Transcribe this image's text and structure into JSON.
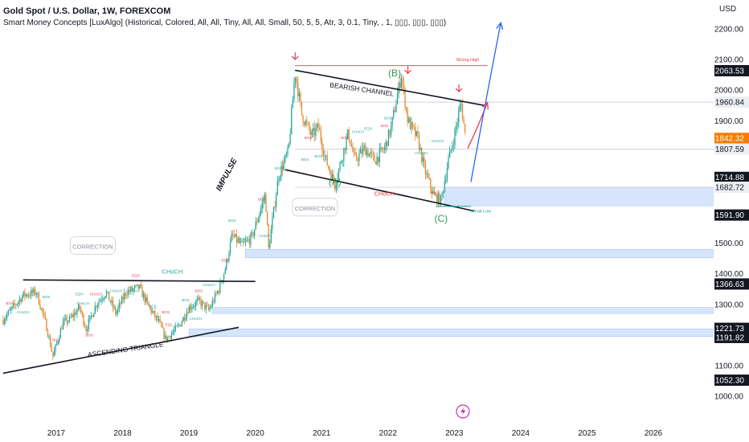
{
  "header": {
    "title": "Gold Spot / U.S. Dollar, 1W, FOREXCOM",
    "indicator": "Smart Money Concepts [LuxAlgo] (Historical, Colored, All, All, Tiny, All, All, Small, 50, 5, 5, Atr, 3, 0.1, Tiny, , 1, ▯▯▯, ▯▯▯, ▯▯▯)"
  },
  "price_axis": {
    "currency": "USD",
    "ticks": [
      1000,
      1100,
      1200,
      1300,
      1400,
      1500,
      1600,
      1700,
      1800,
      1900,
      2000,
      2100,
      2200
    ],
    "tick_labels": [
      "1000.00",
      "1100.00",
      "1200.00",
      "1300.00",
      "1400.00",
      "1500.00",
      "1600.00",
      "1700.00",
      "1800.00",
      "1900.00",
      "2000.00",
      "2100.00",
      "2200.00"
    ],
    "price_tags": [
      {
        "value": 2063.53,
        "label": "2063.53",
        "style": "dark"
      },
      {
        "value": 1960.84,
        "label": "1960.84",
        "style": "gray"
      },
      {
        "value": 1842.32,
        "label": "1842.32",
        "style": "orange"
      },
      {
        "value": 1807.59,
        "label": "1807.59",
        "style": "gray"
      },
      {
        "value": 1714.88,
        "label": "1714.88",
        "style": "dark"
      },
      {
        "value": 1682.72,
        "label": "1682.72",
        "style": "gray"
      },
      {
        "value": 1591.9,
        "label": "1591.90",
        "style": "dark"
      },
      {
        "value": 1366.63,
        "label": "1366.63",
        "style": "dark"
      },
      {
        "value": 1221.73,
        "label": "1221.73",
        "style": "dark"
      },
      {
        "value": 1191.82,
        "label": "1191.82",
        "style": "dark"
      },
      {
        "value": 1052.3,
        "label": "1052.30",
        "style": "dark"
      }
    ]
  },
  "time_axis": {
    "labels": [
      "2017",
      "2018",
      "2019",
      "2020",
      "2021",
      "2022",
      "2023",
      "2024",
      "2025",
      "2026"
    ],
    "years": [
      2017,
      2018,
      2019,
      2020,
      2021,
      2022,
      2023,
      2024,
      2025,
      2026
    ]
  },
  "colors": {
    "bull": "#26a69a",
    "bear": "#e08a2e",
    "red": "#e8394f",
    "blue": "#2962ff",
    "zone": "#cfe0fb",
    "green_text": "#2e9c4f",
    "grid": "#f0f3fa",
    "label_dark": "#131722",
    "label_orange": "#f57c00",
    "label_gray": "#eceff2"
  },
  "chart_data": {
    "type": "candlestick",
    "symbol": "Gold Spot / U.S. Dollar",
    "timeframe": "1W",
    "x_range": [
      2016.2,
      2026.9
    ],
    "y_range": [
      960,
      2260
    ],
    "log_scale": false,
    "grid": false,
    "price_path": [
      [
        2016.2,
        1250
      ],
      [
        2016.5,
        1330
      ],
      [
        2016.7,
        1340
      ],
      [
        2016.85,
        1230
      ],
      [
        2016.95,
        1130
      ],
      [
        2017.1,
        1240
      ],
      [
        2017.2,
        1250
      ],
      [
        2017.35,
        1290
      ],
      [
        2017.45,
        1220
      ],
      [
        2017.6,
        1300
      ],
      [
        2017.75,
        1340
      ],
      [
        2017.9,
        1270
      ],
      [
        2018.05,
        1340
      ],
      [
        2018.25,
        1355
      ],
      [
        2018.4,
        1290
      ],
      [
        2018.55,
        1240
      ],
      [
        2018.65,
        1185
      ],
      [
        2018.85,
        1230
      ],
      [
        2019.0,
        1290
      ],
      [
        2019.15,
        1310
      ],
      [
        2019.3,
        1280
      ],
      [
        2019.45,
        1350
      ],
      [
        2019.55,
        1420
      ],
      [
        2019.65,
        1525
      ],
      [
        2019.8,
        1490
      ],
      [
        2019.95,
        1520
      ],
      [
        2020.15,
        1660
      ],
      [
        2020.2,
        1480
      ],
      [
        2020.35,
        1720
      ],
      [
        2020.5,
        1800
      ],
      [
        2020.6,
        2060
      ],
      [
        2020.7,
        1920
      ],
      [
        2020.85,
        1850
      ],
      [
        2020.95,
        1880
      ],
      [
        2021.05,
        1780
      ],
      [
        2021.2,
        1690
      ],
      [
        2021.4,
        1860
      ],
      [
        2021.5,
        1770
      ],
      [
        2021.65,
        1810
      ],
      [
        2021.8,
        1770
      ],
      [
        2021.95,
        1810
      ],
      [
        2022.05,
        1880
      ],
      [
        2022.2,
        2050
      ],
      [
        2022.3,
        1900
      ],
      [
        2022.45,
        1840
      ],
      [
        2022.55,
        1740
      ],
      [
        2022.7,
        1650
      ],
      [
        2022.8,
        1640
      ],
      [
        2022.9,
        1760
      ],
      [
        2023.0,
        1850
      ],
      [
        2023.1,
        1960
      ],
      [
        2023.17,
        1842
      ]
    ],
    "trendlines": [
      {
        "name": "ascending-triangle-support",
        "from": [
          2016.2,
          1075
        ],
        "to": [
          2019.75,
          1225
        ]
      },
      {
        "name": "ascending-triangle-resistance",
        "from": [
          2016.5,
          1380
        ],
        "to": [
          2020.0,
          1375
        ]
      },
      {
        "name": "bearish-channel-upper",
        "from": [
          2020.6,
          2065
        ],
        "to": [
          2023.45,
          1950
        ]
      },
      {
        "name": "bearish-channel-lower",
        "from": [
          2020.45,
          1740
        ],
        "to": [
          2023.3,
          1605
        ]
      },
      {
        "name": "strong-high",
        "from": [
          2020.6,
          2080
        ],
        "to": [
          2023.5,
          2080
        ]
      },
      {
        "name": "weak-low",
        "from": [
          2022.72,
          1620
        ],
        "to": [
          2023.25,
          1620
        ]
      }
    ],
    "zones": [
      {
        "from_x": 2022.85,
        "to_x": 2026.9,
        "y_low": 1622,
        "y_high": 1682
      },
      {
        "from_x": 2019.85,
        "to_x": 2026.9,
        "y_low": 1452,
        "y_high": 1480
      },
      {
        "from_x": 2019.35,
        "to_x": 2026.9,
        "y_low": 1270,
        "y_high": 1290
      },
      {
        "from_x": 2019.0,
        "to_x": 2026.9,
        "y_low": 1195,
        "y_high": 1220
      }
    ],
    "projections": [
      {
        "name": "red-arrow",
        "from": [
          2023.2,
          1810
        ],
        "to": [
          2023.5,
          1960
        ]
      },
      {
        "name": "blue-arrow",
        "from": [
          2023.25,
          1700
        ],
        "to": [
          2023.7,
          2220
        ]
      }
    ],
    "labels": [
      {
        "text": "BEARISH CHANNEL",
        "x": 2021.6,
        "y": 1995
      },
      {
        "text": "IMPULSE",
        "x": 2019.6,
        "y": 1720
      },
      {
        "text": "ASCENDING TRIANGLE",
        "x": 2018.05,
        "y": 1145
      },
      {
        "text": "CORRECTION",
        "x": 2017.55,
        "y": 1490
      },
      {
        "text": "CORRECTION",
        "x": 2020.9,
        "y": 1615
      },
      {
        "text": "CHoCH",
        "x": 2018.75,
        "y": 1400
      },
      {
        "text": "CHoCH",
        "x": 2021.95,
        "y": 1655
      },
      {
        "text": "(A)",
        "x": 2021.2,
        "y": 1690
      },
      {
        "text": "(B)",
        "x": 2022.1,
        "y": 2045
      },
      {
        "text": "(C)",
        "x": 2022.8,
        "y": 1570
      },
      {
        "text": "Strong High",
        "x": 2023.2,
        "y": 2095
      },
      {
        "text": "Weak Low",
        "x": 2023.4,
        "y": 1600
      }
    ],
    "small_markers": [
      {
        "text": "BOS",
        "x": 2016.3,
        "y": 1300
      },
      {
        "text": "CHoCH",
        "x": 2016.5,
        "y": 1270
      },
      {
        "text": "BOS",
        "x": 2016.85,
        "y": 1320
      },
      {
        "text": "BOS",
        "x": 2017.0,
        "y": 1180
      },
      {
        "text": "EQH",
        "x": 2017.35,
        "y": 1330
      },
      {
        "text": "CHoCH",
        "x": 2017.4,
        "y": 1300
      },
      {
        "text": "CHoCH",
        "x": 2017.6,
        "y": 1330
      },
      {
        "text": "CHoCH",
        "x": 2017.9,
        "y": 1340
      },
      {
        "text": "BOS",
        "x": 2017.5,
        "y": 1195
      },
      {
        "text": "EQH",
        "x": 2018.2,
        "y": 1390
      },
      {
        "text": "CHoCH",
        "x": 2018.15,
        "y": 1340
      },
      {
        "text": "BOS",
        "x": 2018.45,
        "y": 1290
      },
      {
        "text": "BOS",
        "x": 2018.65,
        "y": 1270
      },
      {
        "text": "EQL",
        "x": 2018.7,
        "y": 1230
      },
      {
        "text": "BOS",
        "x": 2018.95,
        "y": 1310
      },
      {
        "text": "BOS",
        "x": 2019.15,
        "y": 1340
      },
      {
        "text": "CHoCH",
        "x": 2019.3,
        "y": 1360
      },
      {
        "text": "CHoCH",
        "x": 2019.1,
        "y": 1250
      },
      {
        "text": "BOS",
        "x": 2019.55,
        "y": 1440
      },
      {
        "text": "BOS",
        "x": 2019.65,
        "y": 1570
      },
      {
        "text": "BOS",
        "x": 2019.8,
        "y": 1510
      },
      {
        "text": "BOS",
        "x": 2020.1,
        "y": 1640
      },
      {
        "text": "CHoCH",
        "x": 2020.15,
        "y": 1520
      },
      {
        "text": "BOS",
        "x": 2020.35,
        "y": 1740
      },
      {
        "text": "BOS",
        "x": 2020.8,
        "y": 1840
      },
      {
        "text": "BOS",
        "x": 2020.75,
        "y": 1770
      },
      {
        "text": "BOS",
        "x": 2020.95,
        "y": 1780
      },
      {
        "text": "BOS",
        "x": 2021.35,
        "y": 1840
      },
      {
        "text": "CHoCH",
        "x": 2021.55,
        "y": 1860
      },
      {
        "text": "EQH",
        "x": 2021.7,
        "y": 1870
      },
      {
        "text": "BOS",
        "x": 2021.95,
        "y": 1880
      },
      {
        "text": "BOS",
        "x": 2022.0,
        "y": 1905
      },
      {
        "text": "CHoCH",
        "x": 2022.5,
        "y": 1790
      },
      {
        "text": "BOS",
        "x": 2022.7,
        "y": 1660
      },
      {
        "text": "CHoCH",
        "x": 2022.75,
        "y": 1830
      }
    ]
  }
}
